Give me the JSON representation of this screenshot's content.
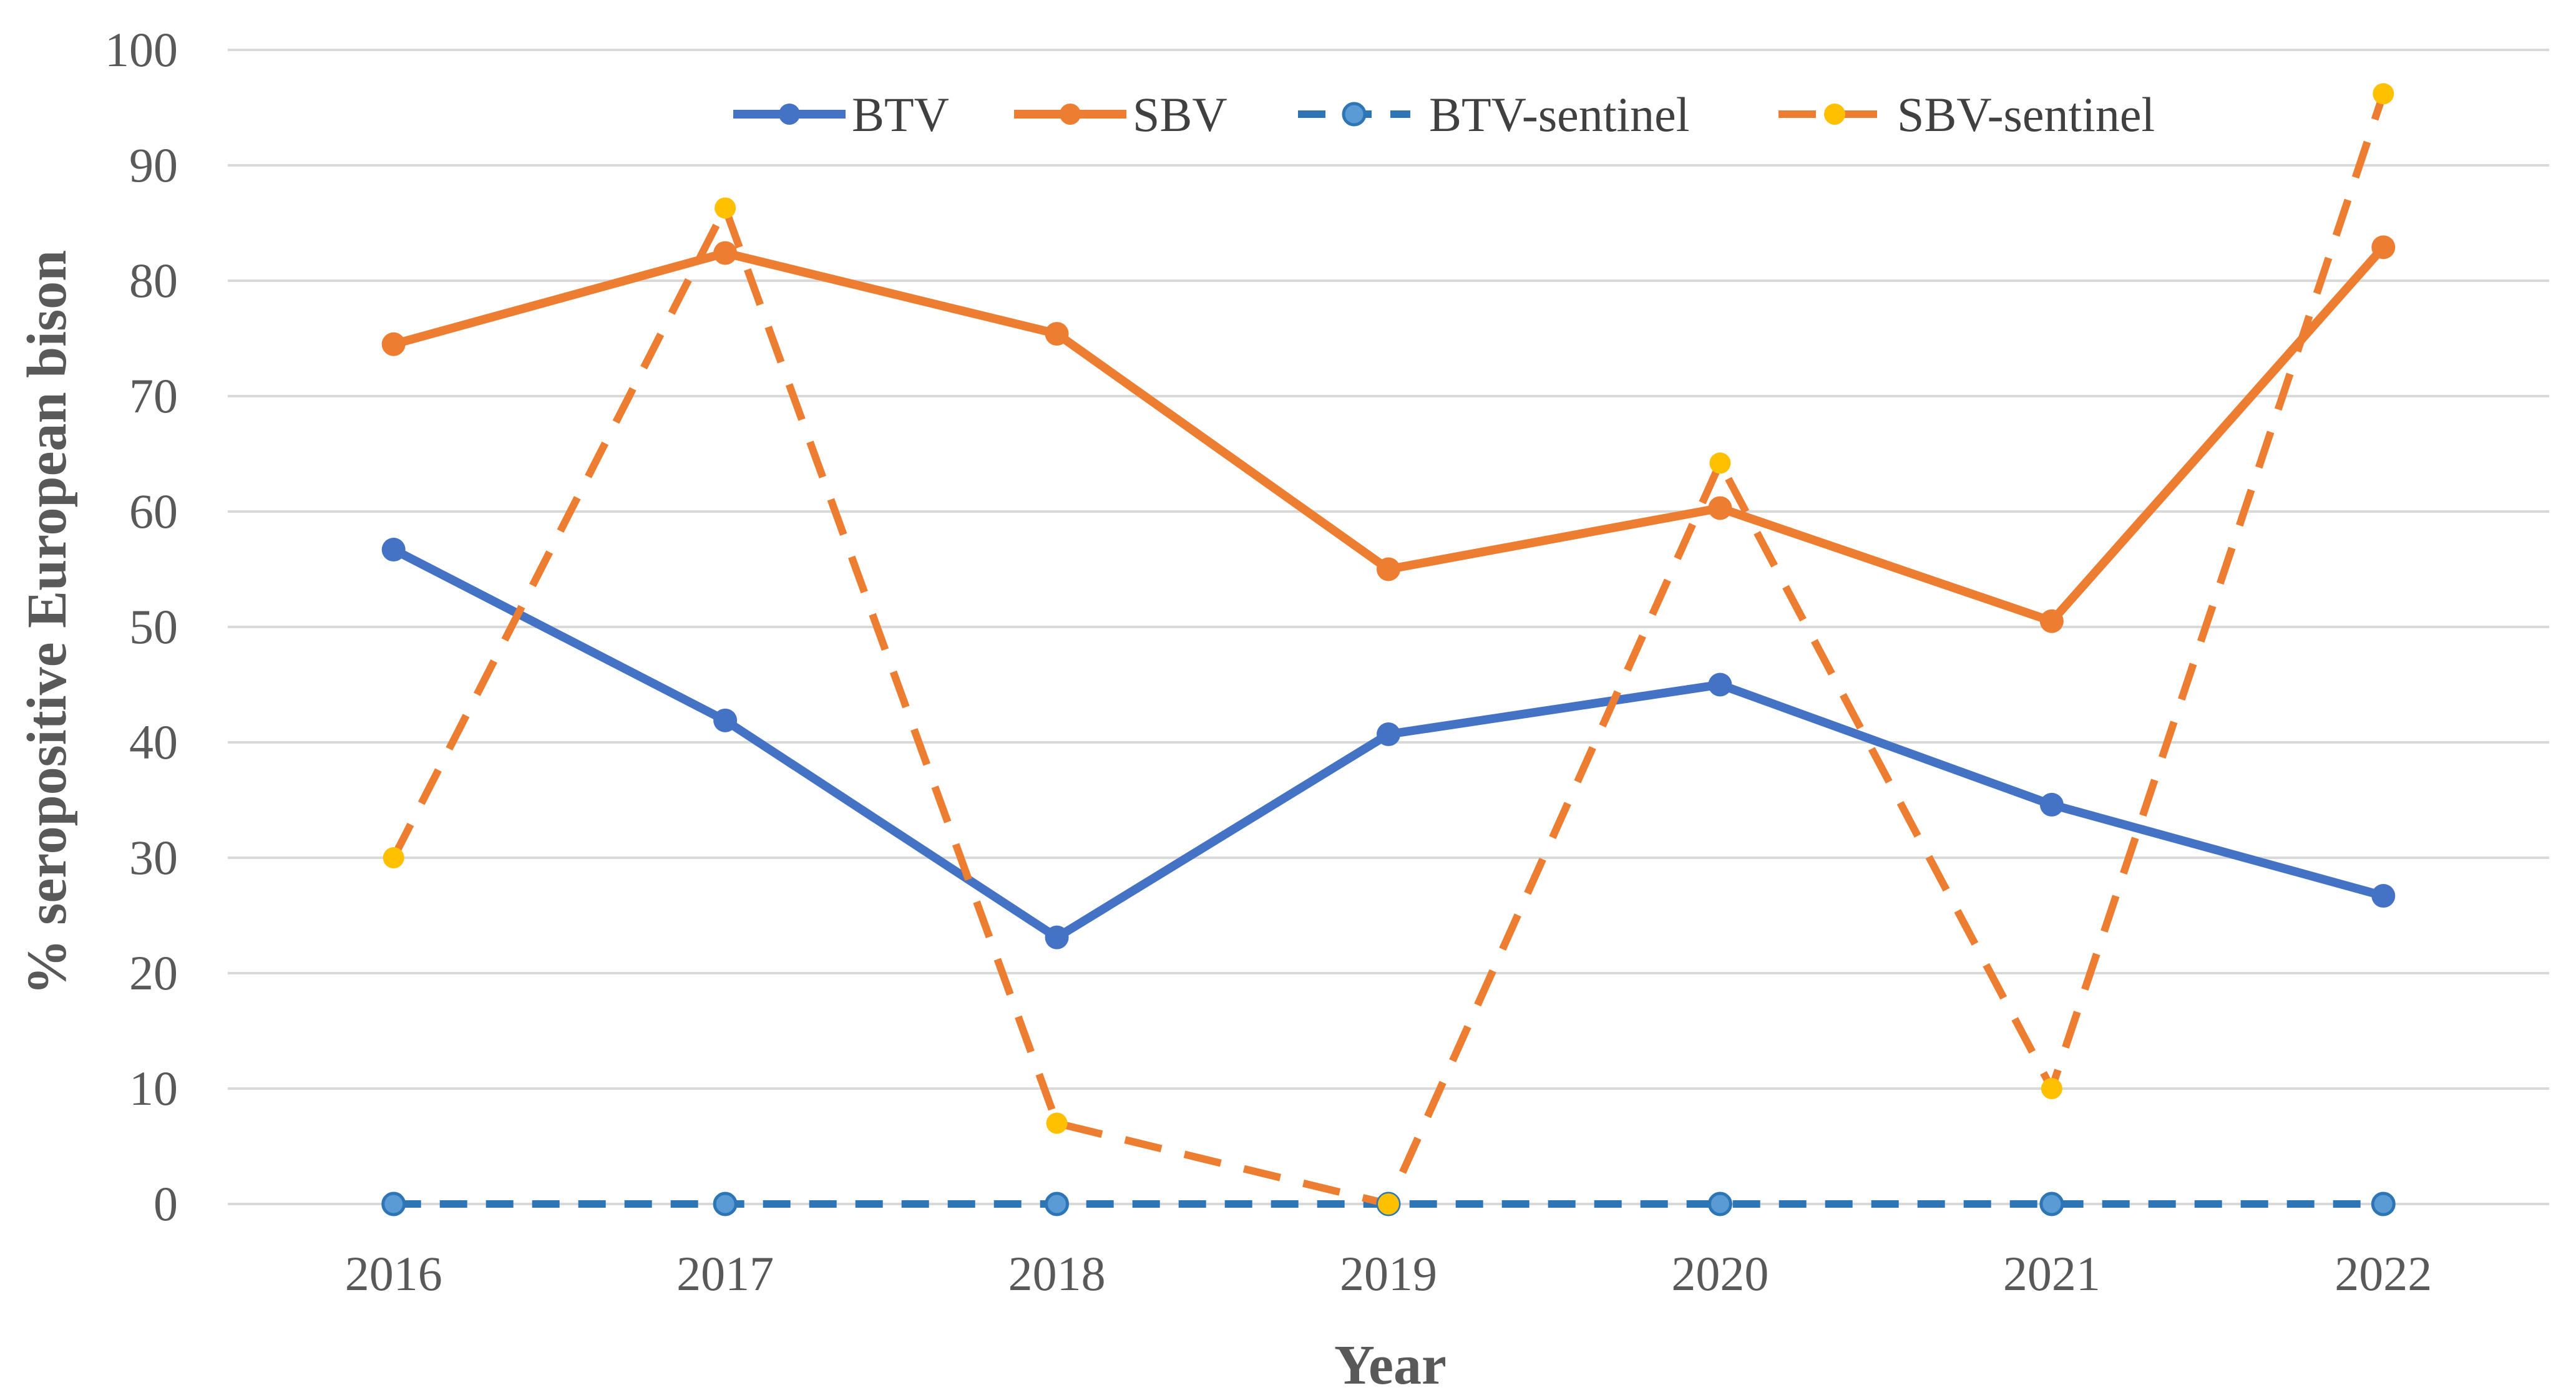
{
  "chart_data": {
    "type": "line",
    "title": "",
    "xlabel": "Year",
    "ylabel": "% seropositive  European bison",
    "categories": [
      "2016",
      "2017",
      "2018",
      "2019",
      "2020",
      "2021",
      "2022"
    ],
    "ylim": [
      0,
      100
    ],
    "yticks": [
      0,
      10,
      20,
      30,
      40,
      50,
      60,
      70,
      80,
      90,
      100
    ],
    "grid": true,
    "legend_position": "top",
    "series": [
      {
        "name": "BTV",
        "values": [
          56.7,
          41.9,
          23.1,
          40.7,
          45.0,
          34.6,
          26.7
        ],
        "color": "#4472C4",
        "marker_color": "#4472C4",
        "dashed": false
      },
      {
        "name": "SBV",
        "values": [
          74.5,
          82.4,
          75.4,
          55.0,
          60.3,
          50.5,
          82.9
        ],
        "color": "#ED7D31",
        "marker_color": "#ED7D31",
        "dashed": false
      },
      {
        "name": "BTV-sentinel",
        "values": [
          0,
          0,
          0,
          0,
          0,
          0,
          0
        ],
        "color": "#2E75B6",
        "marker_color": "#5B9BD5",
        "dashed": true
      },
      {
        "name": "SBV-sentinel",
        "values": [
          30,
          86.3,
          7,
          0,
          64.2,
          10,
          96.2
        ],
        "color": "#ED7D31",
        "marker_color": "#FFC000",
        "dashed": true
      }
    ]
  }
}
